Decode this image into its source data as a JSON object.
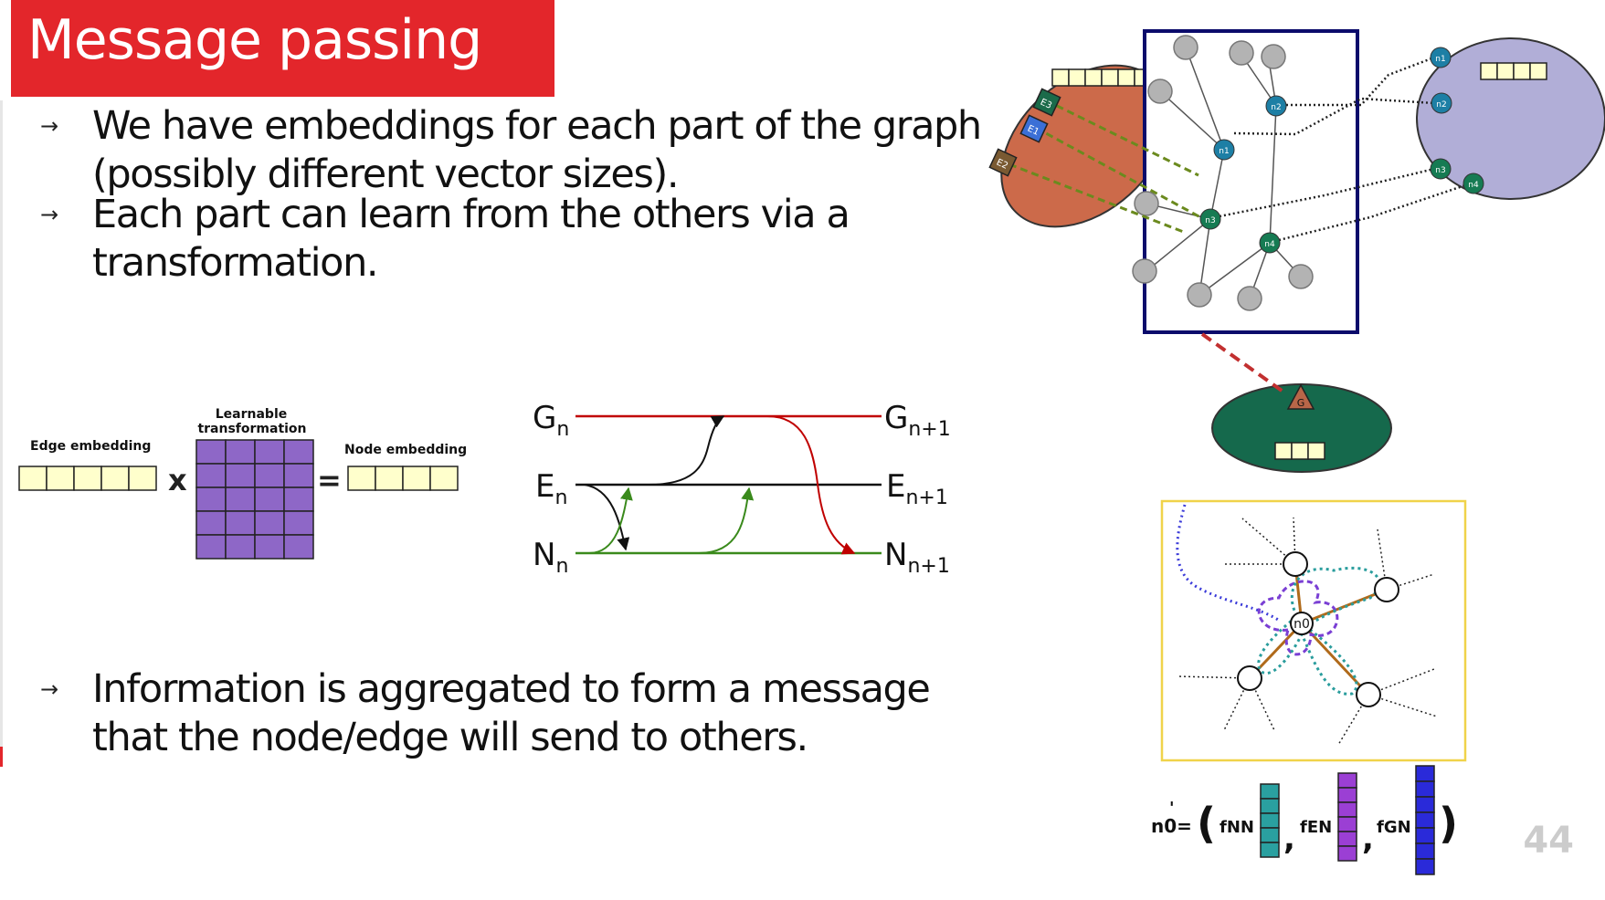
{
  "title": "Message passing",
  "bullets": [
    {
      "lines": [
        "We have embeddings for each part of the graph",
        "(possibly different vector sizes)."
      ]
    },
    {
      "lines": [
        "Each part can learn from the others via a",
        "transformation."
      ]
    },
    {
      "lines": [
        "Information is aggregated to form a message",
        "that the node/edge will send to others."
      ]
    }
  ],
  "transform_figure": {
    "edge_label": "Edge embedding",
    "transform_label_line1": "Learnable",
    "transform_label_line2": "transformation",
    "node_label": "Node embedding",
    "times_sign": "x",
    "equals_sign": "="
  },
  "flow_figure": {
    "g": "G",
    "e": "E",
    "n": "N",
    "sub_in": "n",
    "sub_out": "n+1"
  },
  "graph_figure": {
    "node_labels": [
      "n1",
      "n2",
      "n3",
      "n4"
    ],
    "edge_labels": [
      "E3",
      "E1",
      "E2"
    ],
    "global_label": "G"
  },
  "neighborhood_figure": {
    "center_label": "n0"
  },
  "formula": {
    "lhs": "n0=",
    "prime": "'",
    "f_nn": "fNN",
    "f_en": "fEN",
    "f_gn": "fGN",
    "open_paren": "(",
    "close_paren": ")",
    "comma": ","
  },
  "page_number": "44",
  "colors": {
    "title_bg": "#e3262b",
    "edge_blob": "#cc6a4a",
    "node_blob": "#b1aed7",
    "global_blob": "#15694c",
    "graph_frame": "#0b0b6b",
    "transform_cell": "#8e67c7",
    "embedding_cell": "#ffffcc",
    "flow_g": "#c00000",
    "flow_n": "#3a8a1c",
    "box_frame": "#f0d34a"
  }
}
